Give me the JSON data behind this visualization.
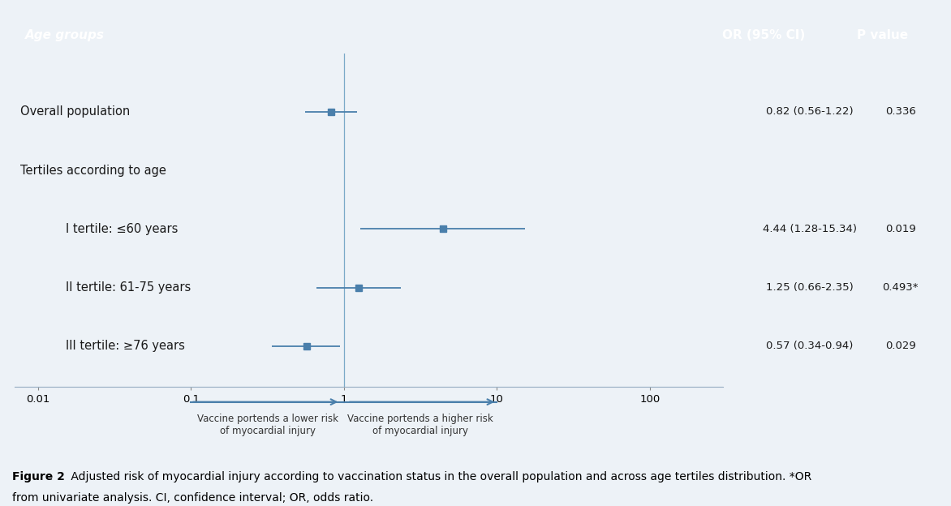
{
  "title_header": "Age groups",
  "header_bg": "#5b8db8",
  "header_text_color": "#ffffff",
  "plot_bg": "#d9e8f5",
  "outer_bg": "#edf2f7",
  "caption_bg": "#eaeef3",
  "rows": [
    {
      "label": "Overall population",
      "indent": 0,
      "or": 0.82,
      "ci_lo": 0.56,
      "ci_hi": 1.22,
      "or_text": "0.82 (0.56-1.22)",
      "p_text": "0.336",
      "y": 5
    },
    {
      "label": "Tertiles according to age",
      "indent": 0,
      "or": null,
      "ci_lo": null,
      "ci_hi": null,
      "or_text": "",
      "p_text": "",
      "y": 4
    },
    {
      "label": "I tertile: ≤60 years",
      "indent": 1,
      "or": 4.44,
      "ci_lo": 1.28,
      "ci_hi": 15.34,
      "or_text": "4.44 (1.28-15.34)",
      "p_text": "0.019",
      "y": 3
    },
    {
      "label": "II tertile: 61-75 years",
      "indent": 1,
      "or": 1.25,
      "ci_lo": 0.66,
      "ci_hi": 2.35,
      "or_text": "1.25 (0.66-2.35)",
      "p_text": "0.493*",
      "y": 2
    },
    {
      "label": "III tertile: ≥76 years",
      "indent": 1,
      "or": 0.57,
      "ci_lo": 0.34,
      "ci_hi": 0.94,
      "or_text": "0.57 (0.34-0.94)",
      "p_text": "0.029",
      "y": 1
    }
  ],
  "x_ticks": [
    0.01,
    0.1,
    1,
    10,
    100
  ],
  "x_tick_labels": [
    "0.01",
    "0.1",
    "1",
    "10",
    "100"
  ],
  "x_min": 0.007,
  "x_max": 300,
  "arrow_left_label1": "Vaccine portends a lower risk",
  "arrow_left_label2": "of myocardial injury",
  "arrow_right_label1": "Vaccine portends a higher risk",
  "arrow_right_label2": "of myocardial injury",
  "marker_color": "#4a7fab",
  "ci_line_color": "#4a7fab",
  "ref_line_color": "#7aaac8",
  "figure_caption_bold": "Figure 2",
  "figure_caption": " Adjusted risk of myocardial injury according to vaccination status in the overall population and across age tertiles distribution. *OR from univariate analysis. CI, confidence interval; OR, odds ratio."
}
